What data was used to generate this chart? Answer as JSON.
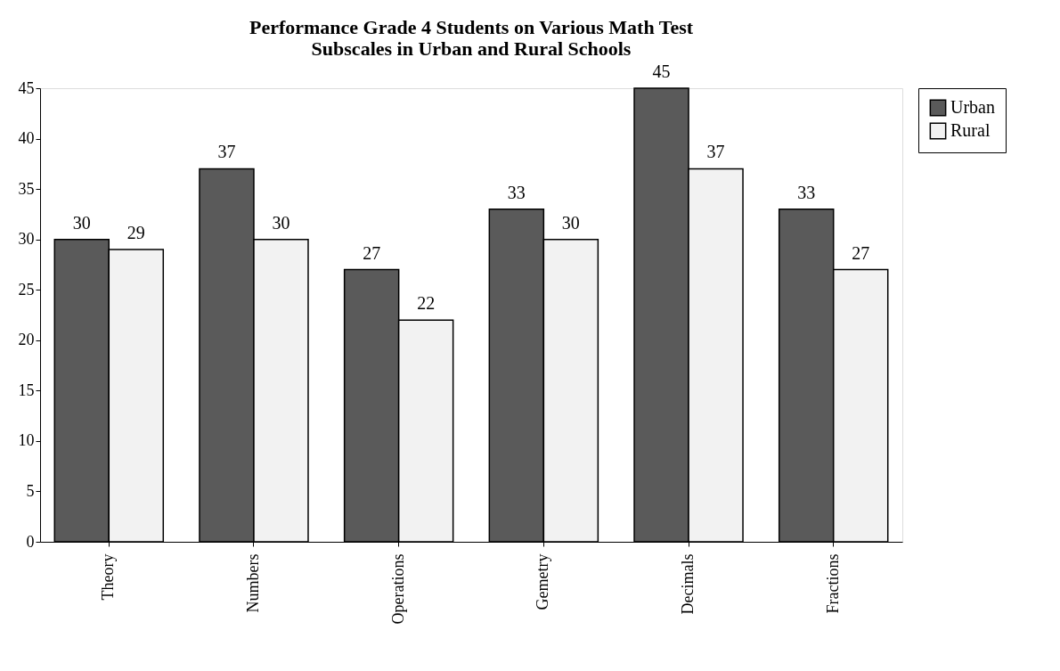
{
  "chart_data": {
    "type": "bar",
    "title": "Performance Grade 4 Students on Various Math Test Subscales in Urban and Rural Schools",
    "categories": [
      "Theory",
      "Numbers",
      "Operations",
      "Gemetry",
      "Decimals",
      "Fractions"
    ],
    "series": [
      {
        "name": "Urban",
        "color": "#5a5a5a",
        "values": [
          30,
          37,
          27,
          33,
          45,
          33
        ]
      },
      {
        "name": "Rural",
        "color": "#f2f2f2",
        "values": [
          29,
          30,
          22,
          30,
          37,
          27
        ]
      }
    ],
    "ylim": [
      0,
      45
    ],
    "yticks": [
      0,
      5,
      10,
      15,
      20,
      25,
      30,
      35,
      40,
      45
    ],
    "data_labels": true,
    "grid": false,
    "legend": "right"
  }
}
